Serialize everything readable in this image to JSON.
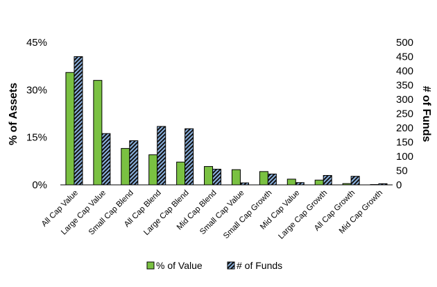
{
  "chart_data": {
    "type": "bar",
    "categories": [
      "All Cap Value",
      "Large Cap Value",
      "Small Cap Blend",
      "All Cap Blend",
      "Large Cap Blend",
      "Mid Cap Blend",
      "Small Cap Value",
      "Small Cap Growth",
      "Mid Cap Value",
      "Large Cap Growth",
      "All Cap Growth",
      "Mid Cap Growth"
    ],
    "series": [
      {
        "name": "% of Value",
        "axis": "left",
        "color": "#7ac142",
        "pattern": "solid",
        "values": [
          35.5,
          33.0,
          11.5,
          9.5,
          7.2,
          5.8,
          4.8,
          4.2,
          1.8,
          1.5,
          0.4,
          0.1
        ]
      },
      {
        "name": "# of Funds",
        "axis": "right",
        "color": "#8db4e2",
        "pattern": "dark diagonal stripes",
        "values": [
          450,
          180,
          155,
          205,
          197,
          55,
          7,
          38,
          8,
          33,
          30,
          4
        ]
      }
    ],
    "y_left": {
      "label": "% of Assets",
      "ticks": [
        "0%",
        "15%",
        "30%",
        "45%"
      ],
      "range": [
        0,
        45
      ]
    },
    "y_right": {
      "label": "# of Funds",
      "ticks": [
        "0",
        "50",
        "100",
        "150",
        "200",
        "250",
        "300",
        "350",
        "400",
        "450",
        "500"
      ],
      "range": [
        0,
        500
      ]
    },
    "grid": false,
    "legend_position": "bottom"
  }
}
